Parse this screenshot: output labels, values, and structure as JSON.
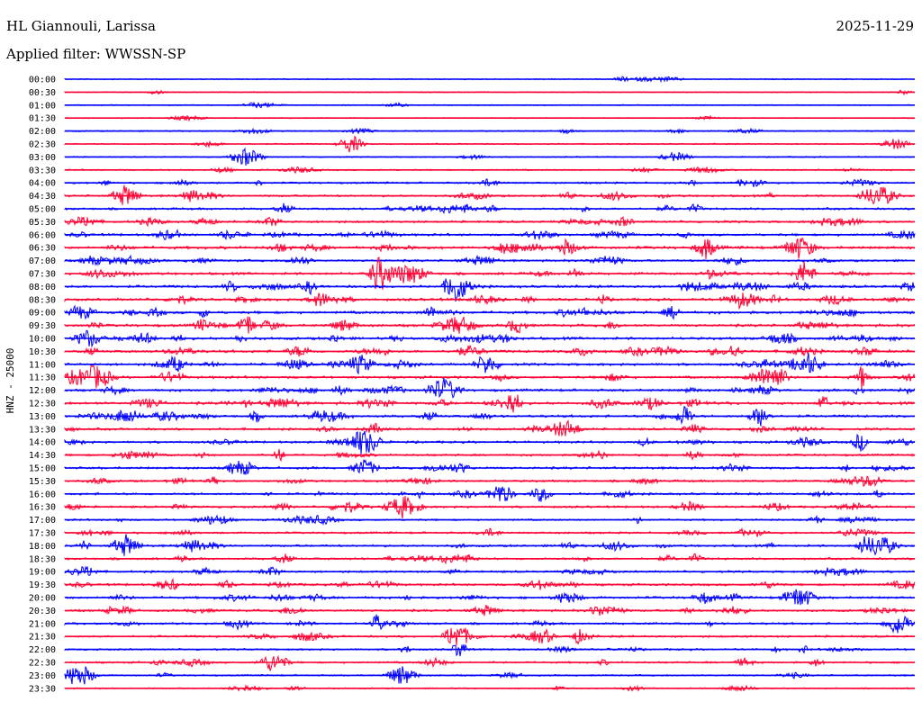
{
  "header": {
    "station": "HL Giannouli, Larissa",
    "date": "2025-11-29",
    "filter_label": "Applied filter: WWSSN-SP"
  },
  "chart_data": {
    "type": "line",
    "ylabel": "HNZ - 25000",
    "colors": [
      "#0000ff",
      "#ff0033"
    ],
    "rows": [
      "00:00",
      "00:30",
      "01:00",
      "01:30",
      "02:00",
      "02:30",
      "03:00",
      "03:30",
      "04:00",
      "04:30",
      "05:00",
      "05:30",
      "06:00",
      "06:30",
      "07:00",
      "07:30",
      "08:00",
      "08:30",
      "09:00",
      "09:30",
      "10:00",
      "10:30",
      "11:00",
      "11:30",
      "12:00",
      "12:30",
      "13:00",
      "13:30",
      "14:00",
      "14:30",
      "15:00",
      "15:30",
      "16:00",
      "16:30",
      "17:00",
      "17:30",
      "18:00",
      "18:30",
      "19:00",
      "19:30",
      "20:00",
      "20:30",
      "21:00",
      "21:30",
      "22:00",
      "22:30",
      "23:00",
      "23:30"
    ],
    "activity": [
      0.15,
      0.1,
      0.15,
      0.1,
      0.25,
      0.2,
      0.2,
      0.3,
      0.45,
      0.55,
      0.55,
      0.6,
      0.65,
      0.8,
      0.6,
      0.7,
      0.75,
      0.75,
      0.8,
      0.75,
      0.8,
      0.75,
      0.7,
      0.7,
      0.7,
      0.8,
      0.7,
      0.6,
      0.6,
      0.55,
      0.65,
      0.55,
      0.6,
      0.55,
      0.45,
      0.5,
      0.6,
      0.55,
      0.55,
      0.6,
      0.65,
      0.6,
      0.55,
      0.55,
      0.45,
      0.45,
      0.35,
      0.25
    ]
  }
}
